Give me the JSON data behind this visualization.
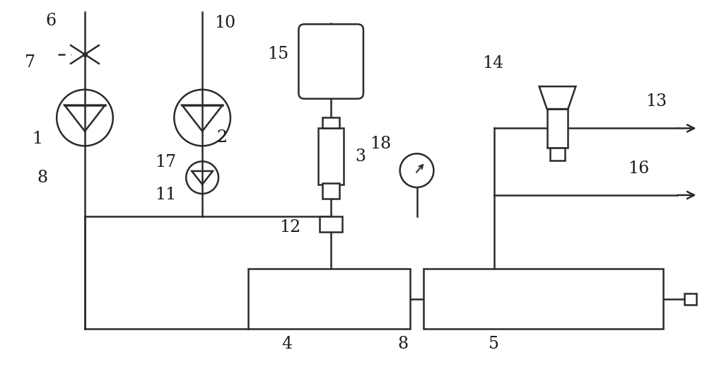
{
  "bg_color": "#ffffff",
  "line_color": "#2a2a2a",
  "label_color": "#1a1a1a",
  "figsize": [
    10.0,
    5.36
  ],
  "dpi": 100
}
